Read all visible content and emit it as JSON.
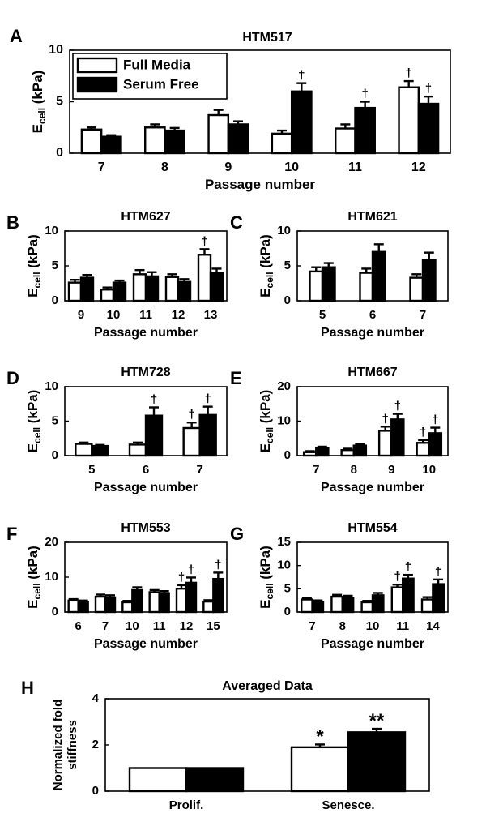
{
  "figure": {
    "panels": [
      {
        "letter": "A",
        "title": "HTM517",
        "ylabel": "E",
        "ylabel_sub": "cell",
        "ylabel_unit": " (kPa)",
        "xlabel": "Passage number"
      },
      {
        "letter": "B",
        "title": "HTM627",
        "ylabel": "E",
        "ylabel_sub": "cell",
        "ylabel_unit": " (kPa)",
        "xlabel": "Passage number"
      },
      {
        "letter": "C",
        "title": "HTM621",
        "ylabel": "E",
        "ylabel_sub": "cell",
        "ylabel_unit": " (kPa)",
        "xlabel": "Passage number"
      },
      {
        "letter": "D",
        "title": "HTM728",
        "ylabel": "E",
        "ylabel_sub": "cell",
        "ylabel_unit": " (kPa)",
        "xlabel": "Passage number"
      },
      {
        "letter": "E",
        "title": "HTM667",
        "ylabel": "E",
        "ylabel_sub": "cell",
        "ylabel_unit": " (kPa)",
        "xlabel": "Passage number"
      },
      {
        "letter": "F",
        "title": "HTM553",
        "ylabel": "E",
        "ylabel_sub": "cell",
        "ylabel_unit": " (kPa)",
        "xlabel": "Passage number"
      },
      {
        "letter": "G",
        "title": "HTM554",
        "ylabel": "E",
        "ylabel_sub": "cell",
        "ylabel_unit": " (kPa)",
        "xlabel": "Passage number"
      },
      {
        "letter": "H",
        "title": "Averaged Data",
        "ylabel": "Normalized fold",
        "ylabel2": "stiffness",
        "xlabel": ""
      }
    ]
  },
  "chart_data": [
    {
      "id": "A",
      "type": "bar",
      "title": "HTM517",
      "xlabel": "Passage number",
      "ylabel": "Ecell (kPa)",
      "ylim": [
        0,
        10
      ],
      "yticks": [
        0,
        5,
        10
      ],
      "categories": [
        "7",
        "8",
        "9",
        "10",
        "11",
        "12"
      ],
      "legend": {
        "position": "top-left",
        "entries": [
          "Full Media",
          "Serum Free"
        ]
      },
      "series": [
        {
          "name": "Full Media",
          "color": "#ffffff",
          "values": [
            2.3,
            2.5,
            3.7,
            1.9,
            2.4,
            6.4
          ],
          "errors": [
            0.2,
            0.3,
            0.5,
            0.3,
            0.4,
            0.6
          ],
          "marks": [
            "",
            "",
            "",
            "",
            "",
            "†"
          ]
        },
        {
          "name": "Serum Free",
          "color": "#000000",
          "values": [
            1.6,
            2.2,
            2.8,
            6.0,
            4.4,
            4.8
          ],
          "errors": [
            0.15,
            0.25,
            0.3,
            0.8,
            0.6,
            0.7
          ],
          "marks": [
            "",
            "",
            "",
            "†",
            "†",
            "†"
          ]
        }
      ]
    },
    {
      "id": "B",
      "type": "bar",
      "title": "HTM627",
      "xlabel": "Passage number",
      "ylabel": "Ecell (kPa)",
      "ylim": [
        0,
        10
      ],
      "yticks": [
        0,
        5,
        10
      ],
      "categories": [
        "9",
        "10",
        "11",
        "12",
        "13"
      ],
      "series": [
        {
          "name": "Full Media",
          "color": "#ffffff",
          "values": [
            2.6,
            1.6,
            3.8,
            3.4,
            6.6
          ],
          "errors": [
            0.4,
            0.3,
            0.6,
            0.4,
            0.8
          ],
          "marks": [
            "",
            "",
            "",
            "",
            "†"
          ]
        },
        {
          "name": "Serum Free",
          "color": "#000000",
          "values": [
            3.3,
            2.6,
            3.5,
            2.7,
            4.0
          ],
          "errors": [
            0.4,
            0.3,
            0.6,
            0.4,
            0.6
          ],
          "marks": [
            "",
            "",
            "",
            "",
            ""
          ]
        }
      ]
    },
    {
      "id": "C",
      "type": "bar",
      "title": "HTM621",
      "xlabel": "Passage number",
      "ylabel": "Ecell (kPa)",
      "ylim": [
        0,
        10
      ],
      "yticks": [
        0,
        5,
        10
      ],
      "categories": [
        "5",
        "6",
        "7"
      ],
      "series": [
        {
          "name": "Full Media",
          "color": "#ffffff",
          "values": [
            4.2,
            4.0,
            3.3
          ],
          "errors": [
            0.6,
            0.6,
            0.5
          ],
          "marks": [
            "",
            "",
            ""
          ]
        },
        {
          "name": "Serum Free",
          "color": "#000000",
          "values": [
            4.8,
            7.0,
            5.9
          ],
          "errors": [
            0.6,
            1.1,
            1.0
          ],
          "marks": [
            "",
            "",
            ""
          ]
        }
      ]
    },
    {
      "id": "D",
      "type": "bar",
      "title": "HTM728",
      "xlabel": "Passage number",
      "ylabel": "Ecell (kPa)",
      "ylim": [
        0,
        10
      ],
      "yticks": [
        0,
        5,
        10
      ],
      "categories": [
        "5",
        "6",
        "7"
      ],
      "series": [
        {
          "name": "Full Media",
          "color": "#ffffff",
          "values": [
            1.7,
            1.6,
            4.0
          ],
          "errors": [
            0.2,
            0.3,
            0.8
          ],
          "marks": [
            "",
            "",
            "†"
          ]
        },
        {
          "name": "Serum Free",
          "color": "#000000",
          "values": [
            1.4,
            5.8,
            5.9
          ],
          "errors": [
            0.15,
            1.2,
            1.2
          ],
          "marks": [
            "",
            "†",
            "†"
          ]
        }
      ]
    },
    {
      "id": "E",
      "type": "bar",
      "title": "HTM667",
      "xlabel": "Passage number",
      "ylabel": "Ecell (kPa)",
      "ylim": [
        0,
        20
      ],
      "yticks": [
        0,
        10,
        20
      ],
      "categories": [
        "7",
        "8",
        "9",
        "10"
      ],
      "series": [
        {
          "name": "Full Media",
          "color": "#ffffff",
          "values": [
            1.0,
            1.6,
            7.2,
            3.7
          ],
          "errors": [
            0.3,
            0.4,
            1.2,
            0.8
          ],
          "marks": [
            "",
            "",
            "†",
            "†"
          ]
        },
        {
          "name": "Serum Free",
          "color": "#000000",
          "values": [
            2.2,
            2.9,
            10.5,
            6.5
          ],
          "errors": [
            0.4,
            0.5,
            1.6,
            1.6
          ],
          "marks": [
            "",
            "",
            "†",
            "†"
          ]
        }
      ]
    },
    {
      "id": "F",
      "type": "bar",
      "title": "HTM553",
      "xlabel": "Passage number",
      "ylabel": "Ecell (kPa)",
      "ylim": [
        0,
        20
      ],
      "yticks": [
        0,
        10,
        20
      ],
      "categories": [
        "6",
        "7",
        "10",
        "11",
        "12",
        "15"
      ],
      "series": [
        {
          "name": "Full Media",
          "color": "#ffffff",
          "values": [
            3.3,
            4.4,
            2.8,
            5.7,
            6.7,
            3.0
          ],
          "errors": [
            0.4,
            0.6,
            0.4,
            0.6,
            1.0,
            0.4
          ],
          "marks": [
            "",
            "",
            "",
            "",
            "†",
            ""
          ]
        },
        {
          "name": "Serum Free",
          "color": "#000000",
          "values": [
            2.9,
            4.2,
            6.3,
            5.4,
            8.4,
            9.5
          ],
          "errors": [
            0.4,
            0.6,
            0.8,
            0.6,
            1.5,
            1.8
          ],
          "marks": [
            "",
            "",
            "",
            "",
            "†",
            "†"
          ]
        }
      ]
    },
    {
      "id": "G",
      "type": "bar",
      "title": "HTM554",
      "xlabel": "Passage number",
      "ylabel": "Ecell (kPa)",
      "ylim": [
        0,
        15
      ],
      "yticks": [
        0,
        5,
        10,
        15
      ],
      "categories": [
        "7",
        "8",
        "10",
        "11",
        "14"
      ],
      "series": [
        {
          "name": "Full Media",
          "color": "#ffffff",
          "values": [
            2.7,
            3.3,
            2.1,
            5.3,
            2.7
          ],
          "errors": [
            0.3,
            0.4,
            0.3,
            0.6,
            0.5
          ],
          "marks": [
            "",
            "",
            "",
            "†",
            ""
          ]
        },
        {
          "name": "Serum Free",
          "color": "#000000",
          "values": [
            2.2,
            3.1,
            3.6,
            7.2,
            6.0
          ],
          "errors": [
            0.3,
            0.4,
            0.5,
            0.8,
            1.0
          ],
          "marks": [
            "",
            "",
            "",
            "†",
            "†"
          ]
        }
      ]
    },
    {
      "id": "H",
      "type": "bar",
      "title": "Averaged Data",
      "xlabel": "",
      "ylabel": "Normalized fold stiffness",
      "ylim": [
        0,
        4
      ],
      "yticks": [
        0,
        2,
        4
      ],
      "categories": [
        "Prolif.",
        "Senesce."
      ],
      "series": [
        {
          "name": "Full Media",
          "color": "#ffffff",
          "values": [
            1.0,
            1.9
          ],
          "errors": [
            0,
            0.12
          ],
          "marks": [
            "",
            "*"
          ]
        },
        {
          "name": "Serum Free",
          "color": "#000000",
          "values": [
            1.0,
            2.55
          ],
          "errors": [
            0,
            0.15
          ],
          "marks": [
            "",
            "**"
          ]
        }
      ]
    }
  ]
}
